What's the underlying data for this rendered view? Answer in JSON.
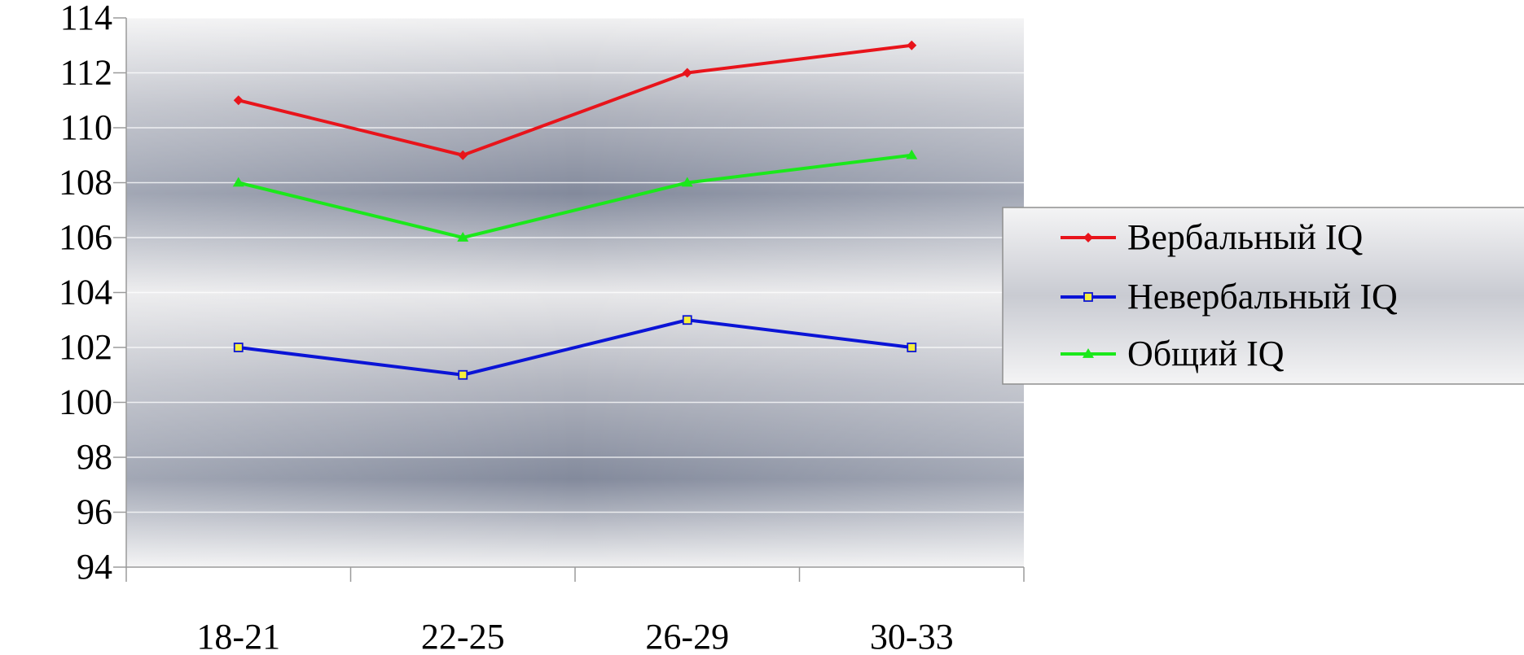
{
  "chart_data": {
    "type": "line",
    "title": "",
    "xlabel": "",
    "ylabel": "",
    "categories": [
      "18-21",
      "22-25",
      "26-29",
      "30-33"
    ],
    "ylim": [
      94,
      114
    ],
    "ytick_step": 2,
    "grid": true,
    "legend_position": "right",
    "series": [
      {
        "name": "Вербальный IQ",
        "values": [
          111,
          109,
          112,
          113
        ],
        "color": "#e8141b",
        "marker": "diamond"
      },
      {
        "name": "Невербальный IQ",
        "values": [
          102,
          101,
          103,
          102
        ],
        "color": "#0b14d6",
        "marker": "square"
      },
      {
        "name": "Общий IQ",
        "values": [
          108,
          106,
          108,
          109
        ],
        "color": "#1be81b",
        "marker": "triangle"
      }
    ]
  }
}
